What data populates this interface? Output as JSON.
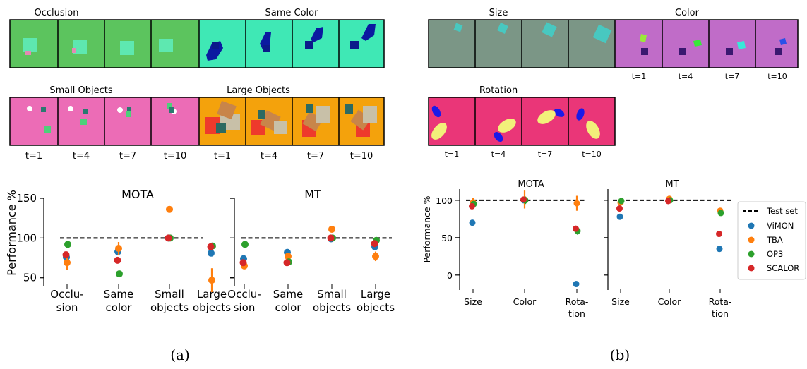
{
  "panels": {
    "a_label": "(a)",
    "b_label": "(b)"
  },
  "strips": {
    "occlusion": "Occlusion",
    "same_color": "Same Color",
    "small_objects": "Small Objects",
    "large_objects": "Large Objects",
    "size": "Size",
    "color": "Color",
    "rotation": "Rotation"
  },
  "time_labels": [
    "t=1",
    "t=4",
    "t=7",
    "t=10"
  ],
  "colors": {
    "ViMON": "#1f77b4",
    "TBA": "#ff7f0e",
    "OP3": "#2ca02c",
    "SCALOR": "#d62728",
    "occlusion_bg": "#5cc45e",
    "same_color_bg": "#3fe8b5",
    "small_bg": "#ec6cb6",
    "large_bg": "#f4a20c",
    "size_bg": "#7b9686",
    "color_bg": "#c06cc8",
    "rotation_bg": "#ea3678"
  },
  "legend": {
    "test_set": "Test set",
    "items": [
      "ViMON",
      "TBA",
      "OP3",
      "SCALOR"
    ]
  },
  "chart_data": [
    {
      "type": "scatter",
      "title": "MOTA",
      "ylabel": "Performance %",
      "ylim": [
        40,
        150
      ],
      "yticks": [
        "50",
        "100",
        "150"
      ],
      "categories": [
        "Occlu-\nsion",
        "Same\ncolor",
        "Small\nobjects",
        "Large\nobjects"
      ],
      "reference_line": 100,
      "series": [
        {
          "name": "ViMON",
          "values": [
            76,
            83,
            100,
            81
          ]
        },
        {
          "name": "TBA",
          "values": [
            69,
            87,
            136,
            47
          ],
          "errors": [
            9,
            8,
            0,
            15
          ]
        },
        {
          "name": "OP3",
          "values": [
            92,
            55,
            100,
            90
          ]
        },
        {
          "name": "SCALOR",
          "values": [
            79,
            72,
            100,
            89
          ]
        }
      ]
    },
    {
      "type": "scatter",
      "title": "MT",
      "ylim": [
        40,
        150
      ],
      "categories": [
        "Occlu-\nsion",
        "Same\ncolor",
        "Small\nobjects",
        "Large\nobjects"
      ],
      "reference_line": 100,
      "series": [
        {
          "name": "ViMON",
          "values": [
            74,
            82,
            99,
            89
          ]
        },
        {
          "name": "TBA",
          "values": [
            65,
            77,
            111,
            77
          ],
          "errors": [
            3,
            3,
            0,
            6
          ]
        },
        {
          "name": "OP3",
          "values": [
            92,
            70,
            100,
            97
          ]
        },
        {
          "name": "SCALOR",
          "values": [
            69,
            69,
            100,
            93
          ]
        }
      ]
    },
    {
      "type": "scatter",
      "title": "MOTA",
      "ylabel": "Performance %",
      "ylim": [
        -20,
        115
      ],
      "yticks": [
        "0",
        "50",
        "100"
      ],
      "categories": [
        "Size",
        "Color",
        "Rota-\ntion"
      ],
      "reference_line": 100,
      "series": [
        {
          "name": "ViMON",
          "values": [
            70,
            100,
            -12
          ]
        },
        {
          "name": "TBA",
          "values": [
            97,
            101,
            96
          ],
          "errors": [
            6,
            12,
            10
          ]
        },
        {
          "name": "OP3",
          "values": [
            95,
            100,
            59
          ],
          "errors": [
            0,
            5,
            5
          ]
        },
        {
          "name": "SCALOR",
          "values": [
            92,
            101,
            62
          ]
        }
      ]
    },
    {
      "type": "scatter",
      "title": "MT",
      "ylim": [
        -20,
        115
      ],
      "categories": [
        "Size",
        "Color",
        "Rota-\ntion"
      ],
      "reference_line": 100,
      "series": [
        {
          "name": "ViMON",
          "values": [
            78,
            100,
            35
          ]
        },
        {
          "name": "TBA",
          "values": [
            97,
            102,
            86
          ]
        },
        {
          "name": "OP3",
          "values": [
            99,
            100,
            83
          ]
        },
        {
          "name": "SCALOR",
          "values": [
            89,
            99,
            55
          ]
        }
      ]
    }
  ]
}
